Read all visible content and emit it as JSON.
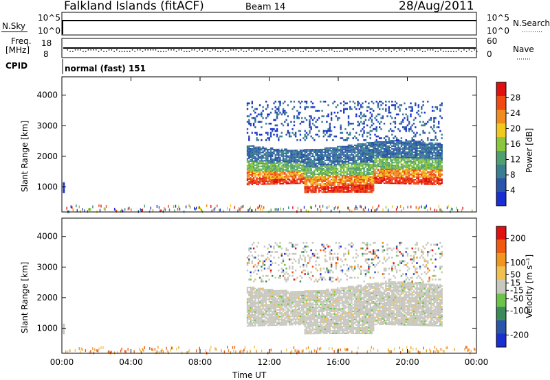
{
  "header": {
    "site": "Falkland Islands (fitACF)",
    "beam": "Beam 14",
    "date": "28/Aug/2011"
  },
  "top_panels": {
    "nsky_label": "N.Sky",
    "nsky_ticks": [
      "10^5",
      "10^0"
    ],
    "nsearch_label": "N.Search",
    "nsearch_ticks": [
      "10^5",
      "10^0"
    ],
    "freq_label_line1": "Freq.",
    "freq_label_line2": "[MHz]",
    "freq_ticks": [
      "18",
      "8"
    ],
    "nave_label": "Nave",
    "nave_ticks": [
      "60",
      "0"
    ],
    "cpid_label": "CPID",
    "cpid_value": "normal (fast) 151"
  },
  "colors": {
    "power_scale": [
      "#1a2fd0",
      "#2b55a8",
      "#3a7f90",
      "#4fa070",
      "#8cc63e",
      "#f0c81e",
      "#f08c1e",
      "#f04a14",
      "#e01010"
    ],
    "velocity_scale": [
      "#1a2fd0",
      "#2b55a8",
      "#3a8a5a",
      "#6cc24a",
      "#c8c8c0",
      "#f0c050",
      "#f0961e",
      "#f05a10",
      "#e01010"
    ]
  },
  "chart_data": [
    {
      "type": "heatmap",
      "title": "Power",
      "xlabel": "",
      "ylabel": "Slant Range [km]",
      "x_range": [
        "00:00",
        "24:00"
      ],
      "ylim": [
        180,
        4600
      ],
      "y_ticks": [
        "1000",
        "2000",
        "3000",
        "4000"
      ],
      "colorbar": {
        "label": "Power [dB]",
        "ticks": [
          "4",
          "8",
          "12",
          "16",
          "20",
          "24",
          "28"
        ],
        "range": [
          0,
          32
        ]
      },
      "regions": [
        {
          "feature": "main echo band",
          "x_start_hour": 10.7,
          "x_end_hour": 22.0,
          "range_km": [
            1000,
            2500
          ]
        },
        {
          "feature": "high altitude scatter",
          "x_start_hour": 10.7,
          "x_end_hour": 21.5,
          "range_km": [
            2500,
            3800
          ]
        },
        {
          "feature": "near range noise",
          "x_start_hour": 0.2,
          "x_end_hour": 24.0,
          "range_km": [
            180,
            400
          ]
        }
      ]
    },
    {
      "type": "heatmap",
      "title": "Velocity",
      "xlabel": "Time UT",
      "ylabel": "Slant Range [km]",
      "x_range": [
        "00:00",
        "24:00"
      ],
      "x_ticks": [
        "00:00",
        "04:00",
        "08:00",
        "12:00",
        "16:00",
        "20:00",
        "00:00"
      ],
      "ylim": [
        180,
        4600
      ],
      "y_ticks": [
        "1000",
        "2000",
        "3000",
        "4000"
      ],
      "colorbar": {
        "label": "Velocity [m s⁻¹]",
        "ticks": [
          "200",
          "100",
          "50",
          "15",
          "-15",
          "-50",
          "-100",
          "-200"
        ],
        "range": [
          -250,
          250
        ]
      },
      "regions": [
        {
          "feature": "ground scatter band (low velocity)",
          "x_start_hour": 10.7,
          "x_end_hour": 22.0,
          "range_km": [
            700,
            2500
          ]
        },
        {
          "feature": "high altitude scatter",
          "x_start_hour": 10.7,
          "x_end_hour": 21.5,
          "range_km": [
            2500,
            3800
          ]
        }
      ]
    }
  ]
}
